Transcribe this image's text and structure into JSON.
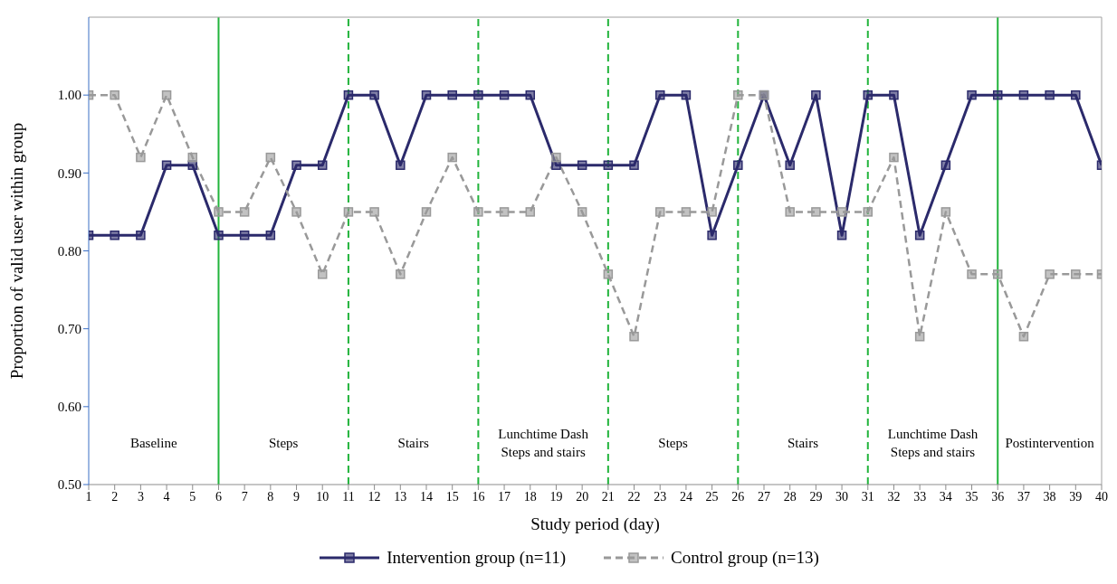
{
  "chart_data": {
    "type": "line",
    "xlabel": "Study period (day)",
    "ylabel": "Proportion of valid user within group",
    "x": [
      1,
      2,
      3,
      4,
      5,
      6,
      7,
      8,
      9,
      10,
      11,
      12,
      13,
      14,
      15,
      16,
      17,
      18,
      19,
      20,
      21,
      22,
      23,
      24,
      25,
      26,
      27,
      28,
      29,
      30,
      31,
      32,
      33,
      34,
      35,
      36,
      37,
      38,
      39,
      40
    ],
    "series": [
      {
        "name": "Intervention group (n=11)",
        "color": "#2b2a6b",
        "line_style": "solid",
        "marker": "square",
        "values": [
          0.82,
          0.82,
          0.82,
          0.91,
          0.91,
          0.82,
          0.82,
          0.82,
          0.91,
          0.91,
          1.0,
          1.0,
          0.91,
          1.0,
          1.0,
          1.0,
          1.0,
          1.0,
          0.91,
          0.91,
          0.91,
          0.91,
          1.0,
          1.0,
          0.82,
          0.91,
          1.0,
          0.91,
          1.0,
          0.82,
          1.0,
          1.0,
          0.82,
          0.91,
          1.0,
          1.0,
          1.0,
          1.0,
          1.0,
          0.91
        ]
      },
      {
        "name": "Control group (n=13)",
        "color": "#999999",
        "line_style": "dashed",
        "marker": "square",
        "values": [
          1.0,
          1.0,
          0.92,
          1.0,
          0.92,
          0.85,
          0.85,
          0.92,
          0.85,
          0.77,
          0.85,
          0.85,
          0.77,
          0.85,
          0.92,
          0.85,
          0.85,
          0.85,
          0.92,
          0.85,
          0.77,
          0.69,
          0.85,
          0.85,
          0.85,
          1.0,
          1.0,
          0.85,
          0.85,
          0.85,
          0.85,
          0.92,
          0.69,
          0.85,
          0.77,
          0.77,
          0.69,
          0.77,
          0.77,
          0.77
        ]
      }
    ],
    "xlim": [
      1,
      40
    ],
    "xticks": [
      1,
      2,
      3,
      4,
      5,
      6,
      7,
      8,
      9,
      10,
      11,
      12,
      13,
      14,
      15,
      16,
      17,
      18,
      19,
      20,
      21,
      22,
      23,
      24,
      25,
      26,
      27,
      28,
      29,
      30,
      31,
      32,
      33,
      34,
      35,
      36,
      37,
      38,
      39,
      40
    ],
    "ylim": [
      0.5,
      1.1
    ],
    "yticks": [
      {
        "value": 0.5,
        "label": "0.50"
      },
      {
        "value": 0.6,
        "label": "0.60"
      },
      {
        "value": 0.7,
        "label": "0.70"
      },
      {
        "value": 0.8,
        "label": "0.80"
      },
      {
        "value": 0.9,
        "label": "0.90"
      },
      {
        "value": 1.0,
        "label": "1.00"
      }
    ],
    "ref_lines": [
      {
        "axis": "x",
        "value": 6,
        "color": "#22b43c",
        "line_style": "solid"
      },
      {
        "axis": "x",
        "value": 11,
        "color": "#22b43c",
        "line_style": "dashed"
      },
      {
        "axis": "x",
        "value": 16,
        "color": "#22b43c",
        "line_style": "dashed"
      },
      {
        "axis": "x",
        "value": 21,
        "color": "#22b43c",
        "line_style": "dashed"
      },
      {
        "axis": "x",
        "value": 26,
        "color": "#22b43c",
        "line_style": "dashed"
      },
      {
        "axis": "x",
        "value": 31,
        "color": "#22b43c",
        "line_style": "dashed"
      },
      {
        "axis": "x",
        "value": 36,
        "color": "#22b43c",
        "line_style": "solid"
      }
    ],
    "annotations": [
      "Baseline",
      "Steps",
      "Stairs",
      "Lunchtime Dash\nSteps and stairs",
      "Steps",
      "Stairs",
      "Lunchtime Dash\nSteps and stairs",
      "Postintervention"
    ],
    "legend": "bottom",
    "grid": false
  }
}
